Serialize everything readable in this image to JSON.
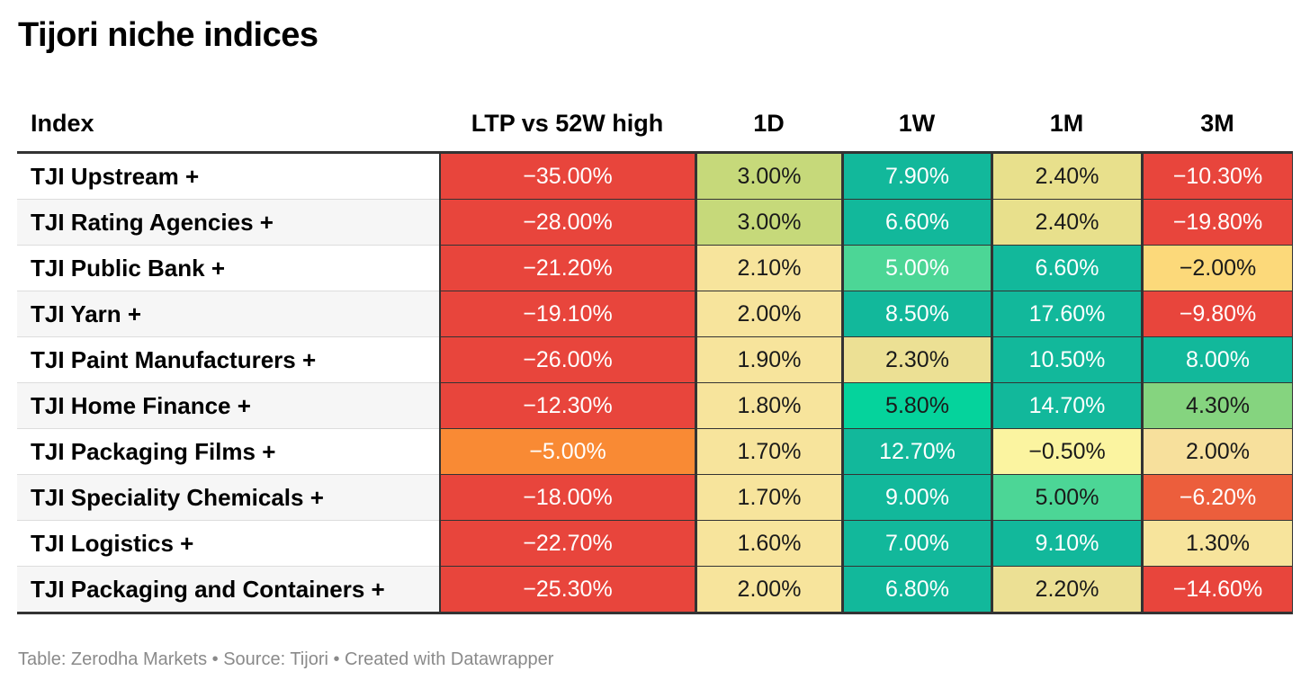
{
  "title": "Tijori niche indices",
  "footer": "Table: Zerodha Markets • Source: Tijori • Created with Datawrapper",
  "chart_data": {
    "type": "table",
    "columns": [
      "Index",
      "LTP vs 52W high",
      "1D",
      "1W",
      "1M",
      "3M"
    ],
    "rows": [
      {
        "name": "TJI Upstream +",
        "values": [
          "−35.00%",
          "3.00%",
          "7.90%",
          "2.40%",
          "−10.30%"
        ]
      },
      {
        "name": "TJI Rating Agencies +",
        "values": [
          "−28.00%",
          "3.00%",
          "6.60%",
          "2.40%",
          "−19.80%"
        ]
      },
      {
        "name": "TJI Public Bank +",
        "values": [
          "−21.20%",
          "2.10%",
          "5.00%",
          "6.60%",
          "−2.00%"
        ]
      },
      {
        "name": "TJI Yarn +",
        "values": [
          "−19.10%",
          "2.00%",
          "8.50%",
          "17.60%",
          "−9.80%"
        ]
      },
      {
        "name": "TJI Paint Manufacturers +",
        "values": [
          "−26.00%",
          "1.90%",
          "2.30%",
          "10.50%",
          "8.00%"
        ]
      },
      {
        "name": "TJI Home Finance +",
        "values": [
          "−12.30%",
          "1.80%",
          "5.80%",
          "14.70%",
          "4.30%"
        ]
      },
      {
        "name": "TJI Packaging Films +",
        "values": [
          "−5.00%",
          "1.70%",
          "12.70%",
          "−0.50%",
          "2.00%"
        ]
      },
      {
        "name": "TJI Speciality Chemicals +",
        "values": [
          "−18.00%",
          "1.70%",
          "9.00%",
          "5.00%",
          "−6.20%"
        ]
      },
      {
        "name": "TJI Logistics +",
        "values": [
          "−22.70%",
          "1.60%",
          "7.00%",
          "9.10%",
          "1.30%"
        ]
      },
      {
        "name": "TJI Packaging and Containers +",
        "values": [
          "−25.30%",
          "2.00%",
          "6.80%",
          "2.20%",
          "−14.60%"
        ]
      }
    ],
    "cell_colors": [
      [
        "#e8453c",
        "#c6d97a",
        "#12b89b",
        "#e8e08c",
        "#e8453c"
      ],
      [
        "#e8453c",
        "#c6d97a",
        "#12b89b",
        "#e8e08c",
        "#e8453c"
      ],
      [
        "#e8453c",
        "#f7e49c",
        "#4cd696",
        "#12b89b",
        "#fcd97a"
      ],
      [
        "#e8453c",
        "#f7e49c",
        "#12b89b",
        "#12b89b",
        "#e8453c"
      ],
      [
        "#e8453c",
        "#f7e49c",
        "#ece094",
        "#12b89b",
        "#12b89b"
      ],
      [
        "#e8453c",
        "#f7e49c",
        "#05d39c",
        "#12b89b",
        "#85d47f"
      ],
      [
        "#f98a34",
        "#f7e49c",
        "#12b89b",
        "#fbf4a0",
        "#f7e09c"
      ],
      [
        "#e8453c",
        "#f7e49c",
        "#12b89b",
        "#4cd696",
        "#ec5e3c"
      ],
      [
        "#e8453c",
        "#f7e49c",
        "#12b89b",
        "#12b89b",
        "#f7e49c"
      ],
      [
        "#e8453c",
        "#f7e49c",
        "#12b89b",
        "#ece094",
        "#e8453c"
      ]
    ],
    "dark_text_cells": [
      [
        true,
        false,
        true,
        false,
        true
      ],
      [
        true,
        false,
        true,
        false,
        true
      ],
      [
        true,
        false,
        true,
        true,
        false
      ],
      [
        true,
        false,
        true,
        true,
        true
      ],
      [
        true,
        false,
        false,
        true,
        true
      ],
      [
        true,
        false,
        false,
        true,
        false
      ],
      [
        true,
        false,
        true,
        false,
        false
      ],
      [
        true,
        false,
        true,
        false,
        true
      ],
      [
        true,
        false,
        true,
        true,
        false
      ],
      [
        true,
        false,
        true,
        false,
        true
      ]
    ]
  }
}
